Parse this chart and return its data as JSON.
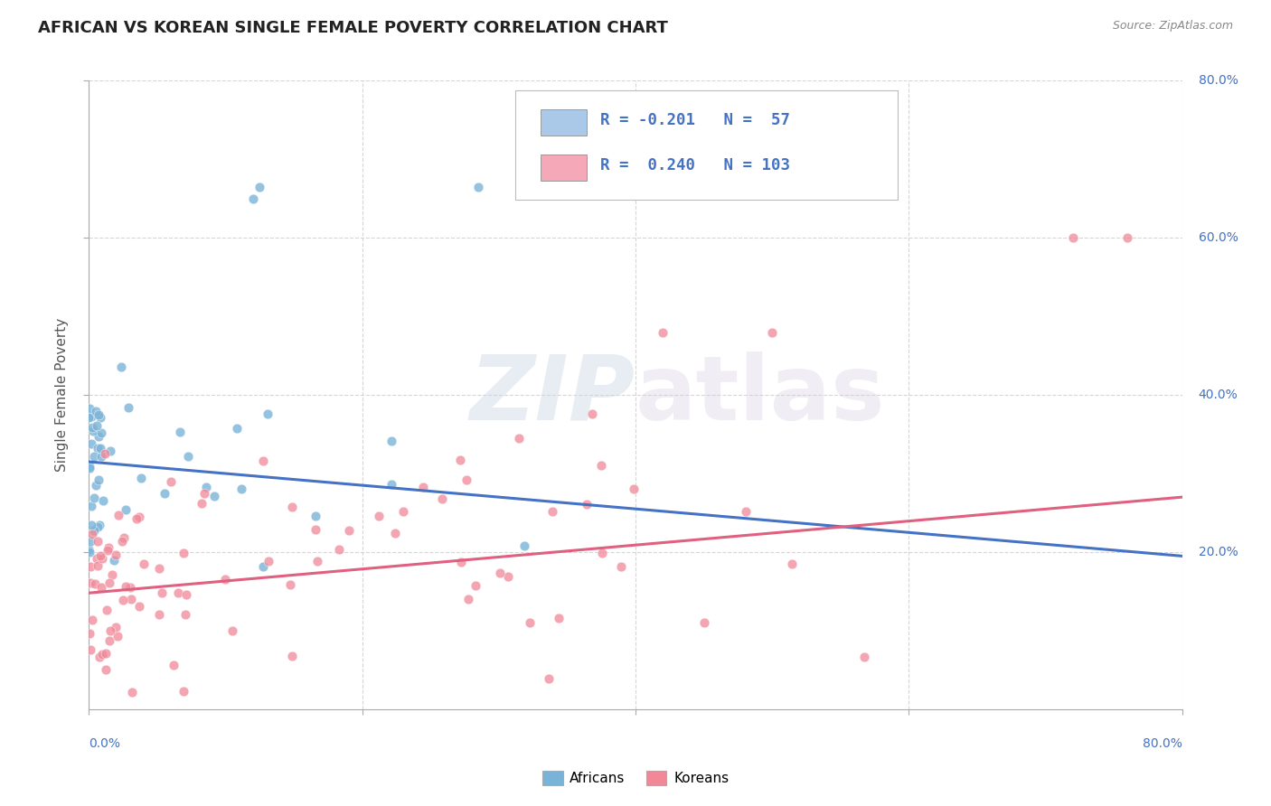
{
  "title": "AFRICAN VS KOREAN SINGLE FEMALE POVERTY CORRELATION CHART",
  "source": "Source: ZipAtlas.com",
  "ylabel": "Single Female Poverty",
  "watermark": "ZIPatlas",
  "xlim": [
    0.0,
    0.8
  ],
  "ylim": [
    0.0,
    0.8
  ],
  "african_color": "#7ab3d8",
  "korean_color": "#f08898",
  "african_line_color": "#4472c4",
  "korean_line_color": "#e06080",
  "background_color": "#ffffff",
  "title_color": "#222222",
  "title_fontsize": 13,
  "grid_color": "#cccccc",
  "african_R": -0.201,
  "african_N": 57,
  "korean_R": 0.24,
  "korean_N": 103,
  "african_line": {
    "x0": 0.0,
    "y0": 0.315,
    "x1": 0.8,
    "y1": 0.195
  },
  "korean_line": {
    "x0": 0.0,
    "y0": 0.148,
    "x1": 0.8,
    "y1": 0.27
  },
  "legend_blue_color": "#aac8e8",
  "legend_pink_color": "#f4a8b8",
  "legend_text_color": "#4472c4",
  "right_tick_color": "#4472c4"
}
